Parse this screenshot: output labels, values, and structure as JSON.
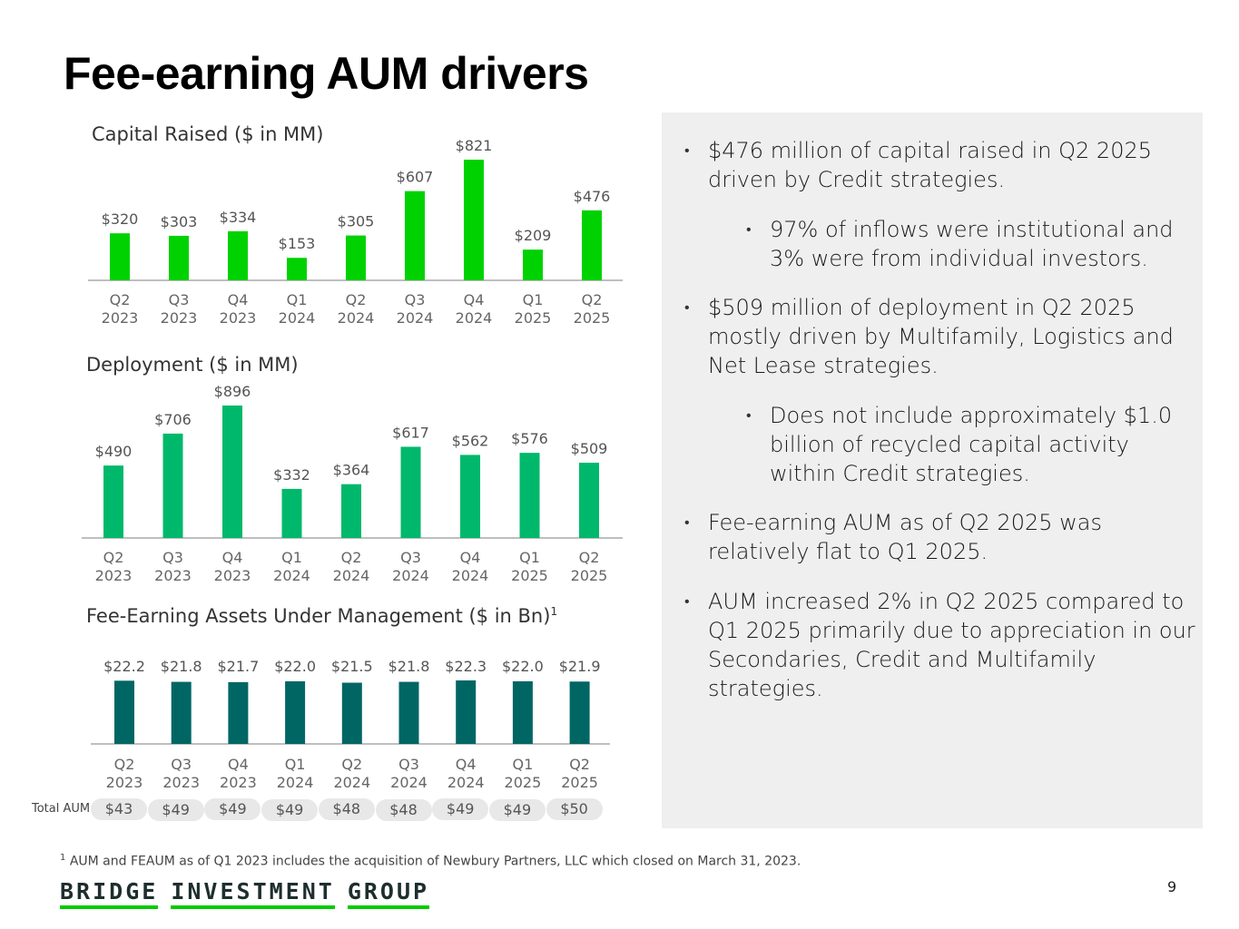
{
  "title": "Fee-earning AUM drivers",
  "colors": {
    "capital": "#00d100",
    "deployment": "#00b86b",
    "feaum": "#006664",
    "panel": "#efefef",
    "logo_underline": "#00cc00"
  },
  "chart_data": [
    {
      "type": "bar",
      "title": "Capital Raised ($ in MM)",
      "categories": [
        "Q2 2023",
        "Q3 2023",
        "Q4 2023",
        "Q1 2024",
        "Q2 2024",
        "Q3 2024",
        "Q4 2024",
        "Q1 2025",
        "Q2 2025"
      ],
      "values": [
        320,
        303,
        334,
        153,
        305,
        607,
        821,
        209,
        476
      ],
      "labels": [
        "$320",
        "$303",
        "$334",
        "$153",
        "$305",
        "$607",
        "$821",
        "$209",
        "$476"
      ]
    },
    {
      "type": "bar",
      "title": "Deployment ($ in MM)",
      "categories": [
        "Q2 2023",
        "Q3 2023",
        "Q4 2023",
        "Q1 2024",
        "Q2 2024",
        "Q3 2024",
        "Q4 2024",
        "Q1 2025",
        "Q2 2025"
      ],
      "values": [
        490,
        706,
        896,
        332,
        364,
        617,
        562,
        576,
        509
      ],
      "labels": [
        "$490",
        "$706",
        "$896",
        "$332",
        "$364",
        "$617",
        "$562",
        "$576",
        "$509"
      ]
    },
    {
      "type": "bar",
      "title": "Fee-Earning Assets Under Management ($ in Bn)",
      "title_superscript": "1",
      "categories": [
        "Q2 2023",
        "Q3 2023",
        "Q4 2023",
        "Q1 2024",
        "Q2 2024",
        "Q3 2024",
        "Q4 2024",
        "Q1 2025",
        "Q2 2025"
      ],
      "values": [
        22.2,
        21.8,
        21.7,
        22.0,
        21.5,
        21.8,
        22.3,
        22.0,
        21.9
      ],
      "labels": [
        "$22.2",
        "$21.8",
        "$21.7",
        "$22.0",
        "$21.5",
        "$21.8",
        "$22.3",
        "$22.0",
        "$21.9"
      ],
      "total_aum_label": "Total AUM:",
      "total_aum": [
        "$43",
        "$49",
        "$49",
        "$49",
        "$48",
        "$48",
        "$49",
        "$49",
        "$50"
      ]
    }
  ],
  "bullets": [
    {
      "level": 1,
      "text": "$476 million of capital raised in Q2 2025 driven by Credit strategies."
    },
    {
      "level": 2,
      "text": "97% of inflows were institutional and 3% were from individual investors."
    },
    {
      "level": 1,
      "text": "$509 million of deployment in Q2 2025 mostly driven by Multifamily, Logistics and Net Lease strategies."
    },
    {
      "level": 2,
      "text": "Does not include approximately $1.0 billion of recycled capital activity within Credit strategies."
    },
    {
      "level": 1,
      "text": "Fee-earning AUM as of Q2 2025 was relatively flat to Q1 2025."
    },
    {
      "level": 1,
      "text": "AUM increased 2% in Q2 2025 compared to Q1 2025 primarily due to appreciation in our Secondaries, Credit and Multifamily strategies."
    }
  ],
  "bullet_marker": "•",
  "footnote": {
    "marker": "1",
    "text": "AUM and FEAUM as of Q1 2023 includes the acquisition of Newbury Partners, LLC which closed on March 31, 2023."
  },
  "logo": {
    "words": [
      "BRIDGE",
      "INVESTMENT",
      "GROUP"
    ]
  },
  "page_number": "9"
}
